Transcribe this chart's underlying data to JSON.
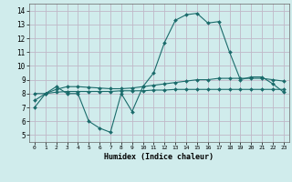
{
  "title": "",
  "xlabel": "Humidex (Indice chaleur)",
  "bg_color": "#d0ecec",
  "grid_color": "#c0b8c8",
  "line_color": "#1a6b6b",
  "xlim": [
    -0.5,
    23.5
  ],
  "ylim": [
    4.5,
    14.5
  ],
  "yticks": [
    5,
    6,
    7,
    8,
    9,
    10,
    11,
    12,
    13,
    14
  ],
  "xticks": [
    0,
    1,
    2,
    3,
    4,
    5,
    6,
    7,
    8,
    9,
    10,
    11,
    12,
    13,
    14,
    15,
    16,
    17,
    18,
    19,
    20,
    21,
    22,
    23
  ],
  "series1_x": [
    0,
    1,
    2,
    3,
    4,
    5,
    6,
    7,
    8,
    9,
    10,
    11,
    12,
    13,
    14,
    15,
    16,
    17,
    18,
    19,
    20,
    21,
    22,
    23
  ],
  "series1_y": [
    7.0,
    8.0,
    8.5,
    8.0,
    8.0,
    6.0,
    5.5,
    5.2,
    8.0,
    6.7,
    8.5,
    9.5,
    11.7,
    13.3,
    13.7,
    13.8,
    13.1,
    13.2,
    11.0,
    9.0,
    9.2,
    9.2,
    8.7,
    8.1
  ],
  "series2_x": [
    0,
    1,
    2,
    3,
    4,
    5,
    6,
    7,
    8,
    9,
    10,
    11,
    12,
    13,
    14,
    15,
    16,
    17,
    18,
    19,
    20,
    21,
    22,
    23
  ],
  "series2_y": [
    8.0,
    8.0,
    8.1,
    8.15,
    8.15,
    8.15,
    8.15,
    8.15,
    8.2,
    8.2,
    8.2,
    8.25,
    8.25,
    8.3,
    8.3,
    8.3,
    8.3,
    8.3,
    8.3,
    8.3,
    8.3,
    8.3,
    8.3,
    8.3
  ],
  "series3_x": [
    0,
    1,
    2,
    3,
    4,
    5,
    6,
    7,
    8,
    9,
    10,
    11,
    12,
    13,
    14,
    15,
    16,
    17,
    18,
    19,
    20,
    21,
    22,
    23
  ],
  "series3_y": [
    7.5,
    8.0,
    8.3,
    8.5,
    8.5,
    8.45,
    8.4,
    8.35,
    8.35,
    8.4,
    8.5,
    8.6,
    8.7,
    8.8,
    8.9,
    9.0,
    9.0,
    9.1,
    9.1,
    9.1,
    9.1,
    9.1,
    9.0,
    8.9
  ]
}
